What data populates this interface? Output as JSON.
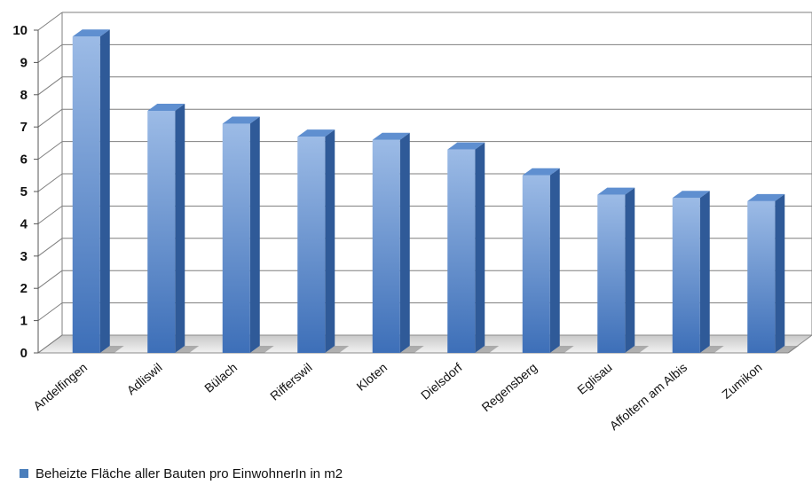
{
  "chart_data": {
    "type": "bar",
    "title": "",
    "xlabel": "",
    "ylabel": "",
    "ylim": [
      0,
      10
    ],
    "yticks": [
      0,
      1,
      2,
      3,
      4,
      5,
      6,
      7,
      8,
      9,
      10
    ],
    "grid": true,
    "legend_position": "bottom-left",
    "categories": [
      "Andelfingen",
      "Adliswil",
      "Bülach",
      "Rifferswil",
      "Kloten",
      "Dielsdorf",
      "Regensberg",
      "Eglisau",
      "Affoltern am Albis",
      "Zumikon"
    ],
    "series": [
      {
        "name": "Beheizte Fläche aller Bauten pro EinwohnerIn in m2",
        "color": "#4a7ebb",
        "values": [
          9.8,
          7.5,
          7.1,
          6.7,
          6.6,
          6.3,
          5.5,
          4.9,
          4.8,
          4.7
        ]
      }
    ]
  }
}
